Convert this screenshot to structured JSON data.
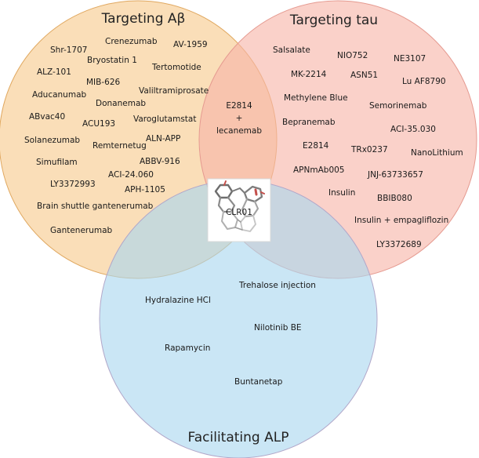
{
  "sets": [
    {
      "id": "abeta",
      "title": "Targeting Aβ",
      "color": "#f7c98d"
    },
    {
      "id": "tau",
      "title": "Targeting tau",
      "color": "#f7b4a8"
    },
    {
      "id": "alp",
      "title": "Facilitating ALP",
      "color": "#a9d7ef"
    }
  ],
  "abeta_only": [
    "Shr-1707",
    "Crenezumab",
    "AV-1959",
    "Bryostatin 1",
    "ALZ-101",
    "Tertomotide",
    "MIB-626",
    "Valiltramiprosate",
    "Aducanumab",
    "Donanemab",
    "ABvac40",
    "ACU193",
    "Varoglutamstat",
    "ALN-APP",
    "Solanezumab",
    "Remternetug",
    "Simufilam",
    "ABBV-916",
    "ACI-24.060",
    "LY3372993",
    "APH-1105",
    "Brain shuttle gantenerumab",
    "Gantenerumab"
  ],
  "tau_only": [
    "Salsalate",
    "NIO752",
    "NE3107",
    "MK-2214",
    "ASN51",
    "Lu AF8790",
    "Methylene Blue",
    "Semorinemab",
    "Bepranemab",
    "ACI-35.030",
    "E2814",
    "TRx0237",
    "NanoLithium",
    "APNmAb005",
    "JNJ-63733657",
    "Insulin",
    "BBIB080",
    "Insulin + empagliflozin",
    "LY3372689"
  ],
  "abeta_tau": [
    "E2814",
    "+",
    "lecanemab"
  ],
  "alp_only": [
    "Trehalose injection",
    "Hydralazine HCl",
    "Nilotinib BE",
    "Rapamycin",
    "Buntanetap"
  ],
  "center": {
    "label": "CLR01"
  }
}
